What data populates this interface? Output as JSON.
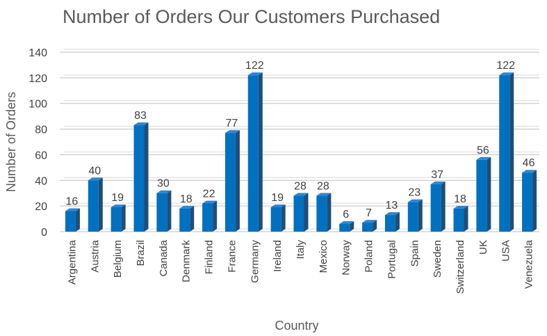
{
  "chart_data": {
    "type": "bar",
    "title": "Number of Orders Our Customers Purchased",
    "xlabel": "Country",
    "ylabel": "Number of Orders",
    "ylim": [
      0,
      140
    ],
    "yticks": [
      0,
      20,
      40,
      60,
      80,
      100,
      120,
      140
    ],
    "grid": true,
    "legend": "none",
    "colors": {
      "bar_front": "#0070C0",
      "bar_side": "#1F4E79",
      "bar_top": "#2E86D4",
      "grid": "#BFBFBF"
    },
    "categories": [
      "Argentina",
      "Austria",
      "Belgium",
      "Brazil",
      "Canada",
      "Denmark",
      "Finland",
      "France",
      "Germany",
      "Ireland",
      "Italy",
      "Mexico",
      "Norway",
      "Poland",
      "Portugal",
      "Spain",
      "Sweden",
      "Switzerland",
      "UK",
      "USA",
      "Venezuela"
    ],
    "values": [
      16,
      40,
      19,
      83,
      30,
      18,
      22,
      77,
      122,
      19,
      28,
      28,
      6,
      7,
      13,
      23,
      37,
      18,
      56,
      122,
      46
    ]
  }
}
